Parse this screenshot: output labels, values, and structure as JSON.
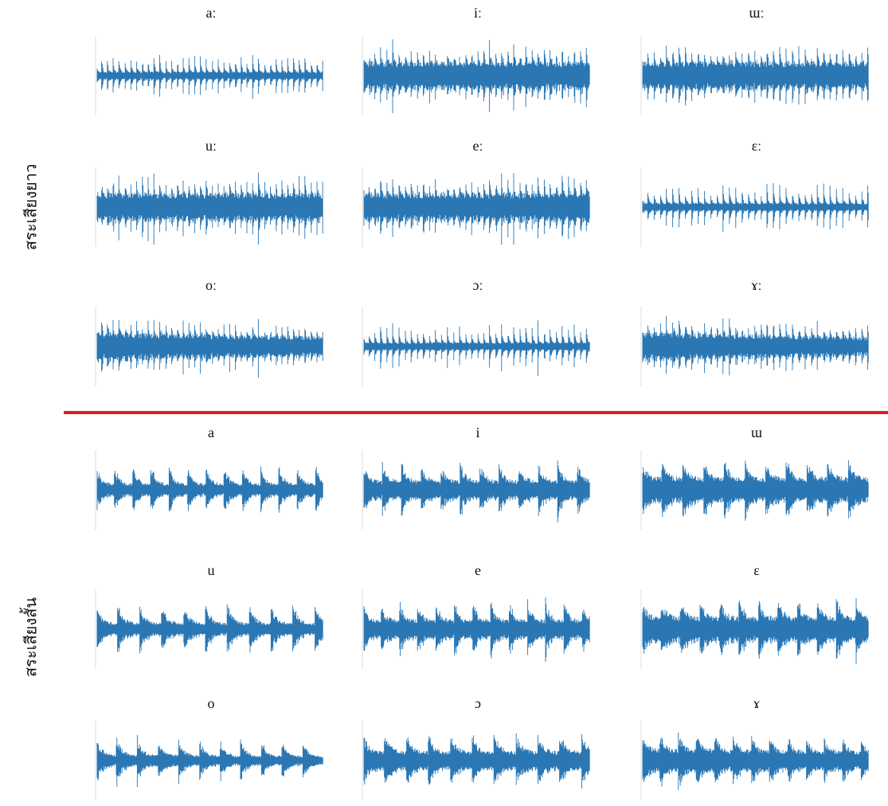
{
  "groups": [
    {
      "label": "สระเสียงยาว",
      "panels": [
        "aː",
        "iː",
        "ɯː",
        "uː",
        "eː",
        "ɛː",
        "oː",
        "ɔː",
        "ɤː"
      ]
    },
    {
      "label": "สระเสียงสั้น",
      "panels": [
        "a",
        "i",
        "ɯ",
        "u",
        "e",
        "ɛ",
        "o",
        "ɔ",
        "ɤ"
      ]
    }
  ]
}
